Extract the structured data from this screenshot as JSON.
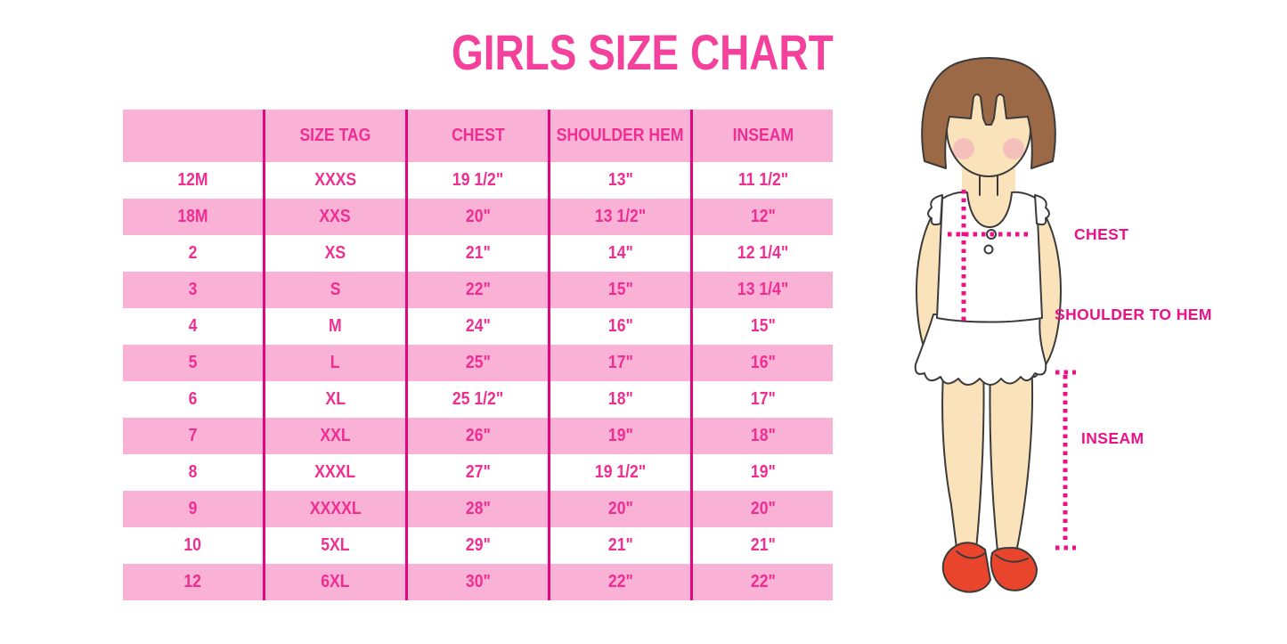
{
  "title": "GIRLS SIZE CHART",
  "colors": {
    "title_pink": "#f4419b",
    "table_text_pink": "#ee2e92",
    "row_band_pink": "#f9b1d6",
    "column_line_magenta": "#e2077f",
    "measurement_pink": "#ec1188",
    "hair_brown": "#9c6947",
    "skin_tone": "#fae3ba",
    "shoe_red": "#e9452c"
  },
  "chart_data": {
    "type": "table",
    "title": "GIRLS SIZE CHART",
    "columns": [
      "",
      "SIZE TAG",
      "CHEST",
      "SHOULDER HEM",
      "INSEAM"
    ],
    "rows": [
      [
        "12M",
        "XXXS",
        "19 1/2\"",
        "13\"",
        "11 1/2\""
      ],
      [
        "18M",
        "XXS",
        "20\"",
        "13 1/2\"",
        "12\""
      ],
      [
        "2",
        "XS",
        "21\"",
        "14\"",
        "12 1/4\""
      ],
      [
        "3",
        "S",
        "22\"",
        "15\"",
        "13 1/4\""
      ],
      [
        "4",
        "M",
        "24\"",
        "16\"",
        "15\""
      ],
      [
        "5",
        "L",
        "25\"",
        "17\"",
        "16\""
      ],
      [
        "6",
        "XL",
        "25 1/2\"",
        "18\"",
        "17\""
      ],
      [
        "7",
        "XXL",
        "26\"",
        "19\"",
        "18\""
      ],
      [
        "8",
        "XXXL",
        "27\"",
        "19 1/2\"",
        "19\""
      ],
      [
        "9",
        "XXXXL",
        "28\"",
        "20\"",
        "20\""
      ],
      [
        "10",
        "5XL",
        "29\"",
        "21\"",
        "21\""
      ],
      [
        "12",
        "6XL",
        "30\"",
        "22\"",
        "22\""
      ]
    ],
    "annotations": [
      "CHEST",
      "SHOULDER TO HEM",
      "INSEAM"
    ],
    "layout": {
      "row_striping": "white and pink alternating, header pink",
      "column_separators": "magenta vertical lines"
    }
  },
  "figure": {
    "description": "girl-illustration",
    "labels": {
      "chest": "CHEST",
      "shoulder_to_hem": "SHOULDER TO HEM",
      "inseam": "INSEAM"
    }
  }
}
